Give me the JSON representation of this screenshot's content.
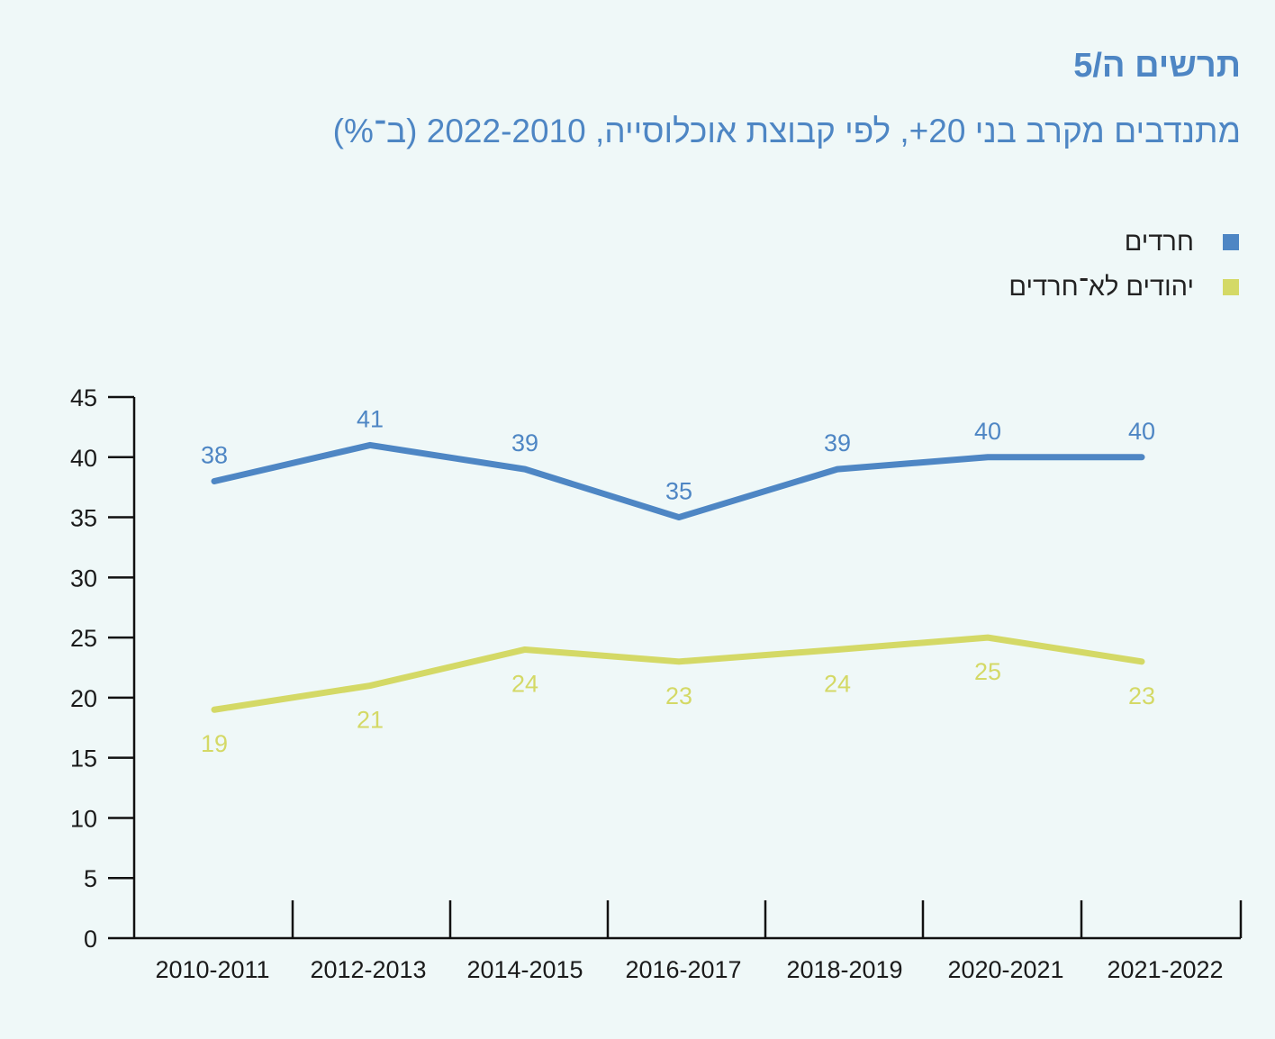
{
  "header": {
    "title": "תרשים ה/5",
    "subtitle": "מתנדבים מקרב בני 20+, לפי קבוצת אוכלוסייה, 2022-2010 (ב־%)"
  },
  "colors": {
    "haredim": "#4e86c4",
    "non_haredim": "#d4d966",
    "background": "#eff8f8"
  },
  "chart_data": {
    "type": "line",
    "categories": [
      "2010-2011",
      "2012-2013",
      "2014-2015",
      "2016-2017",
      "2018-2019",
      "2020-2021",
      "2021-2022"
    ],
    "series": [
      {
        "name": "חרדים",
        "values": [
          38,
          41,
          39,
          35,
          39,
          40,
          40
        ]
      },
      {
        "name": "יהודים לא־חרדים",
        "values": [
          19,
          21,
          24,
          23,
          24,
          25,
          23
        ]
      }
    ],
    "yticks": [
      0,
      5,
      10,
      15,
      20,
      25,
      30,
      35,
      40,
      45
    ],
    "ylim": [
      0,
      45
    ],
    "grid": false,
    "legend_position": "top-right"
  }
}
